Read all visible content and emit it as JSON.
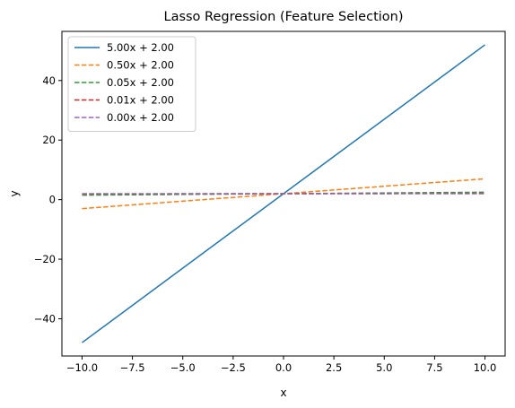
{
  "chart_data": {
    "type": "line",
    "title": "Lasso Regression (Feature Selection)",
    "xlabel": "x",
    "ylabel": "y",
    "xlim": [
      -11,
      11
    ],
    "ylim": [
      -52.5,
      56.5
    ],
    "x_ticks": [
      -10.0,
      -7.5,
      -5.0,
      -2.5,
      0.0,
      2.5,
      5.0,
      7.5,
      10.0
    ],
    "x_tick_labels": [
      "−10.0",
      "−7.5",
      "−5.0",
      "−2.5",
      "0.0",
      "2.5",
      "5.0",
      "7.5",
      "10.0"
    ],
    "y_ticks": [
      -40,
      -20,
      0,
      20,
      40
    ],
    "y_tick_labels": [
      "−40",
      "−20",
      "0",
      "20",
      "40"
    ],
    "grid": false,
    "legend_position": "top-left",
    "series": [
      {
        "name": "5.00x + 2.00",
        "color": "#1f77b4",
        "style": "solid",
        "x": [
          -10,
          10
        ],
        "y": [
          -48,
          52
        ]
      },
      {
        "name": "0.50x + 2.00",
        "color": "#ff7f0e",
        "style": "dashed",
        "x": [
          -10,
          10
        ],
        "y": [
          -3,
          7
        ]
      },
      {
        "name": "0.05x + 2.00",
        "color": "#2ca02c",
        "style": "dashed",
        "x": [
          -10,
          10
        ],
        "y": [
          1.5,
          2.5
        ]
      },
      {
        "name": "0.01x + 2.00",
        "color": "#d62728",
        "style": "dashed",
        "x": [
          -10,
          10
        ],
        "y": [
          1.9,
          2.1
        ]
      },
      {
        "name": "0.00x + 2.00",
        "color": "#9467bd",
        "style": "dashed",
        "x": [
          -10,
          10
        ],
        "y": [
          2,
          2
        ]
      }
    ]
  }
}
